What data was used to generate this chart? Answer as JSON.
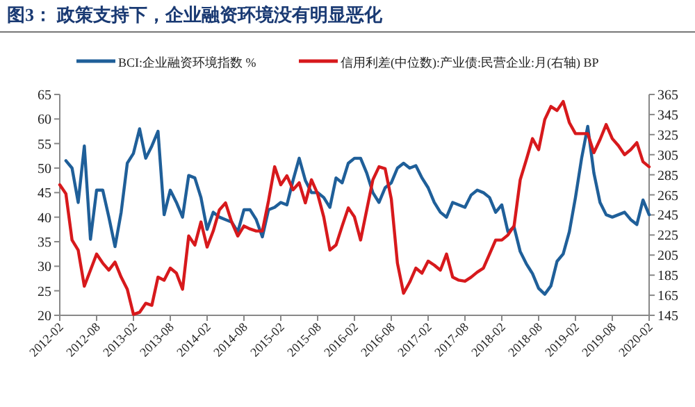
{
  "chart_data": {
    "type": "line",
    "title": "图3： 政策支持下，企业融资环境没有明显恶化",
    "legend": "top",
    "x": [
      "2012-02",
      "2012-03",
      "2012-04",
      "2012-05",
      "2012-06",
      "2012-07",
      "2012-08",
      "2012-09",
      "2012-10",
      "2012-11",
      "2012-12",
      "2013-01",
      "2013-02",
      "2013-03",
      "2013-04",
      "2013-05",
      "2013-06",
      "2013-07",
      "2013-08",
      "2013-09",
      "2013-10",
      "2013-11",
      "2013-12",
      "2014-01",
      "2014-02",
      "2014-03",
      "2014-04",
      "2014-05",
      "2014-06",
      "2014-07",
      "2014-08",
      "2014-09",
      "2014-10",
      "2014-11",
      "2014-12",
      "2015-01",
      "2015-02",
      "2015-03",
      "2015-04",
      "2015-05",
      "2015-06",
      "2015-07",
      "2015-08",
      "2015-09",
      "2015-10",
      "2015-11",
      "2015-12",
      "2016-01",
      "2016-02",
      "2016-03",
      "2016-04",
      "2016-05",
      "2016-06",
      "2016-07",
      "2016-08",
      "2016-09",
      "2016-10",
      "2016-11",
      "2016-12",
      "2017-01",
      "2017-02",
      "2017-03",
      "2017-04",
      "2017-05",
      "2017-06",
      "2017-07",
      "2017-08",
      "2017-09",
      "2017-10",
      "2017-11",
      "2017-12",
      "2018-01",
      "2018-02",
      "2018-03",
      "2018-04",
      "2018-05",
      "2018-06",
      "2018-07",
      "2018-08",
      "2018-09",
      "2018-10",
      "2018-11",
      "2018-12",
      "2019-01",
      "2019-02",
      "2019-03",
      "2019-04",
      "2019-05",
      "2019-06",
      "2019-07",
      "2019-08",
      "2019-09",
      "2019-10",
      "2019-11",
      "2019-12",
      "2020-01",
      "2020-02"
    ],
    "xlim": [
      "2012-02",
      "2020-02"
    ],
    "xticks": [
      "2012-02",
      "2012-08",
      "2013-02",
      "2013-08",
      "2014-02",
      "2014-08",
      "2015-02",
      "2015-08",
      "2016-02",
      "2016-08",
      "2017-02",
      "2017-08",
      "2018-02",
      "2018-08",
      "2019-02",
      "2019-08",
      "2020-02"
    ],
    "ylim": [
      20,
      65
    ],
    "yticks": [
      20,
      25,
      30,
      35,
      40,
      45,
      50,
      55,
      60,
      65
    ],
    "y2lim": [
      145,
      365
    ],
    "y2ticks": [
      145,
      165,
      185,
      205,
      225,
      245,
      265,
      285,
      305,
      325,
      345,
      365
    ],
    "series": [
      {
        "name": "BCI:企业融资环境指数 %",
        "color": "#1f5f99",
        "values": [
          null,
          51.5,
          50,
          43,
          54.5,
          35.5,
          45.5,
          45.5,
          40,
          34,
          41,
          51,
          53,
          58,
          52,
          54.5,
          57.5,
          40.5,
          45.5,
          43,
          40,
          48.5,
          48,
          44,
          37.5,
          41,
          40,
          39.5,
          39,
          37,
          41.5,
          41.5,
          39.5,
          36,
          41.5,
          42,
          43,
          42.5,
          47.5,
          52,
          47.5,
          45,
          45,
          44,
          42,
          48,
          47,
          51,
          52,
          52,
          49,
          45,
          43,
          46,
          47,
          50,
          51,
          50,
          50.5,
          48,
          46,
          43,
          41,
          40,
          43,
          42.5,
          42,
          44.5,
          45.5,
          45,
          44,
          41,
          42.5,
          37,
          38,
          33,
          30.5,
          28.5,
          25.5,
          24.3,
          26,
          31,
          32.5,
          37,
          44,
          52,
          58.5,
          49,
          43,
          40.5,
          40,
          40.5,
          41,
          39.5,
          38.5,
          43.5,
          40.5
        ]
      },
      {
        "name": "信用利差(中位数):产业债:民营企业:月(右轴) BP",
        "color": "#d7191c",
        "axis": "y2",
        "values": [
          275,
          266,
          220,
          210,
          174,
          190,
          206,
          197,
          190,
          198,
          183,
          171,
          146,
          148,
          157,
          155,
          183,
          180,
          192,
          187,
          171,
          224,
          215,
          238,
          213,
          229,
          250,
          257,
          238,
          224,
          234,
          231,
          229,
          229,
          259,
          293,
          275,
          284,
          270,
          277,
          257,
          280,
          266,
          243,
          210,
          215,
          234,
          252,
          243,
          220,
          250,
          280,
          293,
          291,
          261,
          197,
          167,
          178,
          192,
          187,
          199,
          195,
          190,
          206,
          183,
          180,
          179,
          183,
          188,
          192,
          206,
          220,
          220,
          225,
          234,
          280,
          300,
          321,
          310,
          340,
          353,
          349,
          358,
          337,
          326,
          326,
          326,
          307,
          320,
          335,
          321,
          314,
          305,
          310,
          317,
          298,
          293
        ]
      }
    ]
  }
}
